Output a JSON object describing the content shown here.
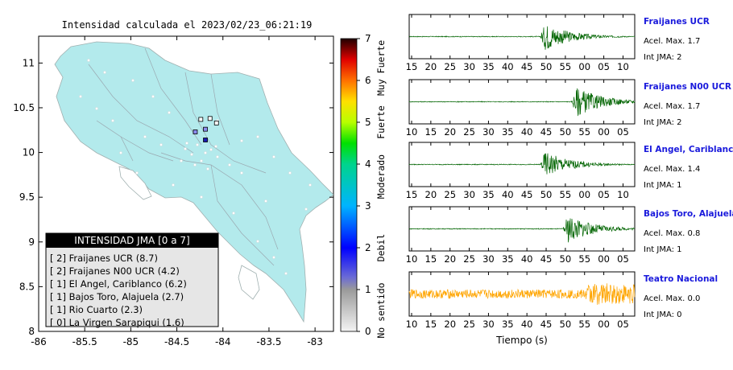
{
  "map": {
    "title": "Intensidad calculada el 2023/02/23_06:21:19",
    "x_ticks": [
      "-86",
      "-85.5",
      "-85",
      "-84.5",
      "-84",
      "-83.5",
      "-83"
    ],
    "y_ticks": [
      "8",
      "8.5",
      "9",
      "9.5",
      "10",
      "10.5",
      "11"
    ],
    "xlim": [
      -86,
      -82.8
    ],
    "ylim": [
      8,
      11.3
    ],
    "land_color": "#b3eaec",
    "stations": [
      {
        "lon": -84.24,
        "lat": 10.37,
        "level": 2,
        "color": "#ffffff"
      },
      {
        "lon": -84.14,
        "lat": 10.38,
        "level": 2,
        "color": "#ffffff"
      },
      {
        "lon": -84.19,
        "lat": 10.26,
        "level": 1,
        "color": "#8c8cf0"
      },
      {
        "lon": -84.3,
        "lat": 10.23,
        "level": 1,
        "color": "#8c8cf0"
      },
      {
        "lon": -84.19,
        "lat": 10.14,
        "level": 1,
        "color": "#1a1ab0"
      },
      {
        "lon": -84.07,
        "lat": 10.33,
        "level": 0,
        "color": "#ffffff"
      }
    ]
  },
  "colorbar": {
    "ticks": [
      "0",
      "1",
      "2",
      "3",
      "4",
      "5",
      "6",
      "7"
    ],
    "labels": [
      "No sentido",
      "Debil",
      "Moderado",
      "Fuerte",
      "Muy Fuerte"
    ],
    "stops": [
      {
        "v": 0,
        "c": "#f4f4f4"
      },
      {
        "v": 1,
        "c": "#9a9a9a"
      },
      {
        "v": 1.3,
        "c": "#6a6ad6"
      },
      {
        "v": 2,
        "c": "#0000ff"
      },
      {
        "v": 3,
        "c": "#00b4ff"
      },
      {
        "v": 4,
        "c": "#00d48c"
      },
      {
        "v": 4.5,
        "c": "#00e000"
      },
      {
        "v": 5,
        "c": "#b8ff00"
      },
      {
        "v": 5.5,
        "c": "#ffe000"
      },
      {
        "v": 6,
        "c": "#ff7000"
      },
      {
        "v": 6.5,
        "c": "#e00000"
      },
      {
        "v": 7,
        "c": "#200000"
      }
    ]
  },
  "legend": {
    "title": "INTENSIDAD JMA [0 a 7]",
    "items": [
      "[ 2] Fraijanes UCR (8.7)",
      "[ 2] Fraijanes N00 UCR (4.2)",
      "[ 1] El Angel, Cariblanco (6.2)",
      "[ 1] Bajos Toro, Alajuela (2.7)",
      "[ 1] Rio Cuarto (2.3)",
      "[ 0] La Virgen Sarapiqui (1.6)"
    ]
  },
  "traces": {
    "xlabel": "Tiempo (s)",
    "panels": [
      {
        "station": "Fraijanes UCR",
        "acel": "Acel. Max. 1.7",
        "int": "Int JMA: 2",
        "color": "#006400",
        "ticks": [
          "15",
          "20",
          "25",
          "30",
          "35",
          "40",
          "45",
          "50",
          "55",
          "00",
          "05",
          "10"
        ],
        "onset": 0.58,
        "amp": 0.85,
        "noise": 0.02
      },
      {
        "station": "Fraijanes N00 UCR",
        "acel": "Acel. Max. 1.7",
        "int": "Int JMA: 2",
        "color": "#006400",
        "ticks": [
          "10",
          "15",
          "20",
          "25",
          "30",
          "35",
          "40",
          "45",
          "50",
          "55",
          "00",
          "05"
        ],
        "onset": 0.72,
        "amp": 0.9,
        "noise": 0.02
      },
      {
        "station": "El Angel, Cariblanco",
        "acel": "Acel. Max. 1.4",
        "int": "Int JMA: 1",
        "color": "#006400",
        "ticks": [
          "15",
          "20",
          "25",
          "30",
          "35",
          "40",
          "45",
          "50",
          "55",
          "00",
          "05",
          "10"
        ],
        "onset": 0.58,
        "amp": 0.8,
        "noise": 0.02
      },
      {
        "station": "Bajos Toro, Alajuela",
        "acel": "Acel. Max. 0.8",
        "int": "Int JMA: 1",
        "color": "#006400",
        "ticks": [
          "10",
          "15",
          "20",
          "25",
          "30",
          "35",
          "40",
          "45",
          "50",
          "55",
          "00",
          "05"
        ],
        "onset": 0.68,
        "amp": 0.85,
        "noise": 0.02
      },
      {
        "station": "Teatro Nacional",
        "acel": "Acel. Max. 0.0",
        "int": "Int JMA: 0",
        "color": "#ffa500",
        "ticks": [
          "10",
          "15",
          "20",
          "25",
          "30",
          "35",
          "40",
          "45",
          "50",
          "55",
          "00",
          "05"
        ],
        "onset": 0.77,
        "amp": 0.55,
        "noise": 0.22
      }
    ]
  }
}
